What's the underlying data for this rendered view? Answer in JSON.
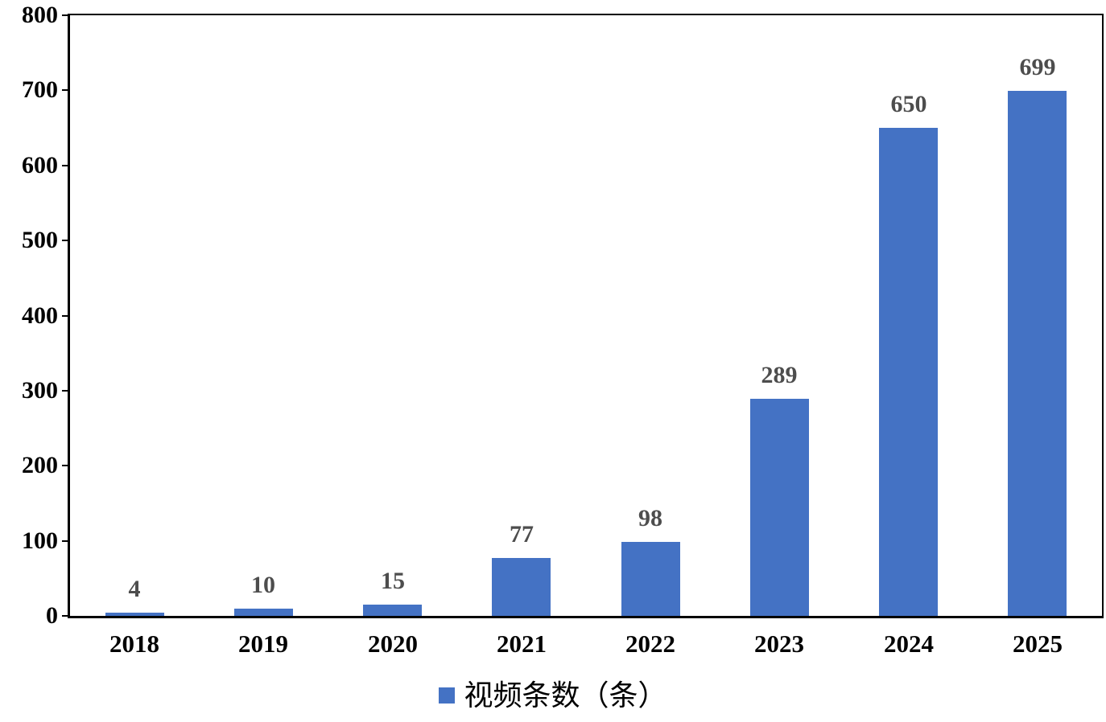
{
  "chart_data": {
    "type": "bar",
    "categories": [
      "2018",
      "2019",
      "2020",
      "2021",
      "2022",
      "2023",
      "2024",
      "2025"
    ],
    "values": [
      4,
      10,
      15,
      77,
      98,
      289,
      650,
      699
    ],
    "series_name": "视频条数（条）",
    "legend": "视频条数（条）",
    "title": "",
    "xlabel": "",
    "ylabel": "",
    "ylim": [
      0,
      800
    ],
    "yticks": [
      0,
      100,
      200,
      300,
      400,
      500,
      600,
      700,
      800
    ],
    "grid": false,
    "legend_position": "bottom",
    "data_labels": "outside-end"
  },
  "colors": {
    "bar": "#4472C4",
    "data_label": "#4d4d4d",
    "axis": "#000000",
    "axis_text": "#000000",
    "background": "#ffffff",
    "legend_marker": "#4472C4"
  }
}
